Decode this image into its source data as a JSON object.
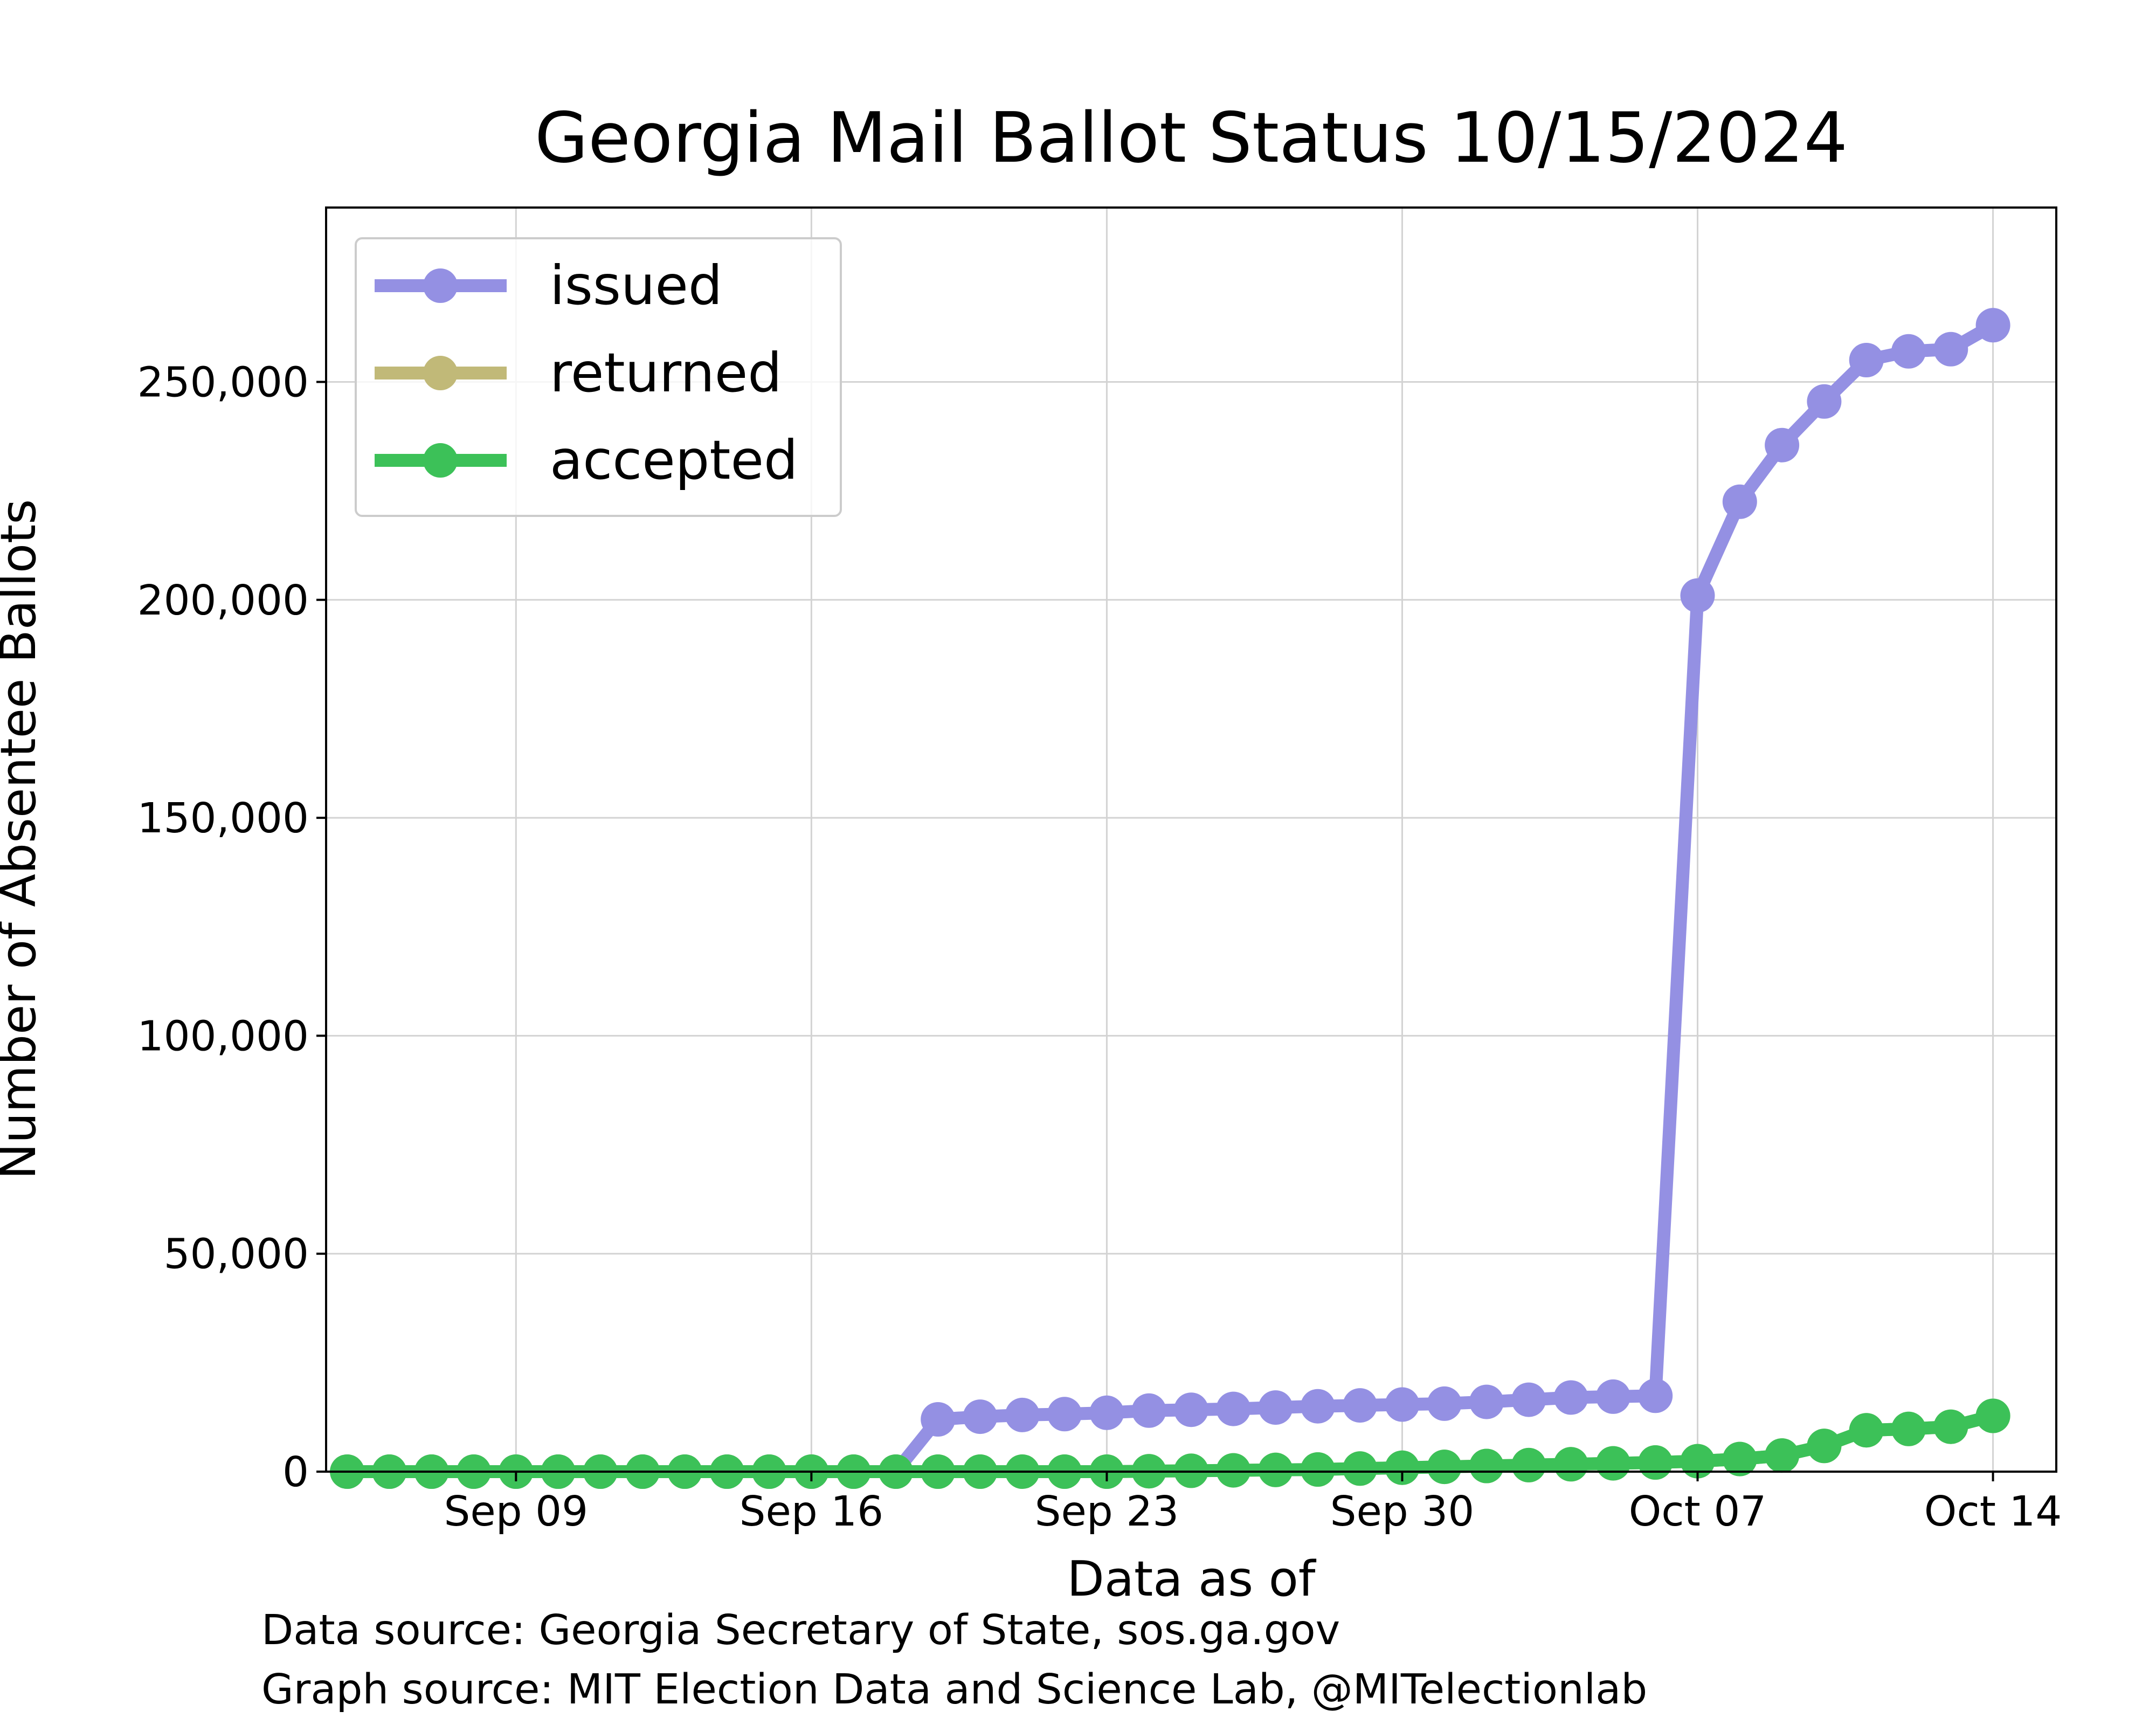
{
  "chart_data": {
    "type": "line",
    "title": "Georgia Mail Ballot Status 10/15/2024",
    "xlabel": "Data as of",
    "ylabel": "Number of Absentee Ballots",
    "x": [
      "2024-09-05",
      "2024-09-06",
      "2024-09-07",
      "2024-09-08",
      "2024-09-09",
      "2024-09-10",
      "2024-09-11",
      "2024-09-12",
      "2024-09-13",
      "2024-09-14",
      "2024-09-15",
      "2024-09-16",
      "2024-09-17",
      "2024-09-18",
      "2024-09-19",
      "2024-09-20",
      "2024-09-21",
      "2024-09-22",
      "2024-09-23",
      "2024-09-24",
      "2024-09-25",
      "2024-09-26",
      "2024-09-27",
      "2024-09-28",
      "2024-09-29",
      "2024-09-30",
      "2024-10-01",
      "2024-10-02",
      "2024-10-03",
      "2024-10-04",
      "2024-10-05",
      "2024-10-06",
      "2024-10-07",
      "2024-10-08",
      "2024-10-09",
      "2024-10-10",
      "2024-10-11",
      "2024-10-12",
      "2024-10-13",
      "2024-10-14"
    ],
    "series": [
      {
        "name": "issued",
        "color": "#9490e3",
        "values": [
          0,
          0,
          0,
          0,
          0,
          0,
          0,
          0,
          0,
          0,
          0,
          0,
          0,
          0,
          12000,
          12600,
          13000,
          13200,
          13500,
          14000,
          14200,
          14400,
          14700,
          15000,
          15200,
          15400,
          15600,
          16000,
          16500,
          17000,
          17200,
          17400,
          201000,
          222500,
          235500,
          245500,
          255000,
          257000,
          257500,
          263000
        ]
      },
      {
        "name": "returned",
        "color": "#c1b978",
        "values": [
          0,
          0,
          0,
          0,
          0,
          0,
          0,
          0,
          0,
          0,
          0,
          0,
          0,
          0,
          0,
          0,
          0,
          0,
          0,
          100,
          200,
          300,
          400,
          500,
          700,
          900,
          1100,
          1300,
          1500,
          1700,
          1900,
          2100,
          2400,
          2900,
          3700,
          5900,
          9500,
          9800,
          10300,
          12800
        ]
      },
      {
        "name": "accepted",
        "color": "#3cc158",
        "values": [
          0,
          0,
          0,
          0,
          0,
          0,
          0,
          0,
          0,
          0,
          0,
          0,
          0,
          0,
          0,
          0,
          0,
          0,
          0,
          100,
          200,
          300,
          400,
          500,
          700,
          900,
          1100,
          1300,
          1500,
          1700,
          1900,
          2100,
          2400,
          2900,
          3700,
          5900,
          9500,
          9800,
          10300,
          12800
        ]
      }
    ],
    "ylim": [
      0,
      290000
    ],
    "xlim": [
      "2024-09-04T12:00",
      "2024-10-15T12:00"
    ],
    "yticks": [
      0,
      50000,
      100000,
      150000,
      200000,
      250000
    ],
    "ytick_labels": [
      "0",
      "50,000",
      "100,000",
      "150,000",
      "200,000",
      "250,000"
    ],
    "xticks": [
      "2024-09-09",
      "2024-09-16",
      "2024-09-23",
      "2024-09-30",
      "2024-10-07",
      "2024-10-14"
    ],
    "xtick_labels": [
      "Sep 09",
      "Sep 16",
      "Sep 23",
      "Sep 30",
      "Oct 07",
      "Oct 14"
    ],
    "grid": true,
    "legend_position": "top-left"
  },
  "footer": {
    "data_source": "Data source: Georgia Secretary of State, sos.ga.gov",
    "graph_source": "Graph source: MIT Election Data and Science Lab, @MITelectionlab"
  }
}
